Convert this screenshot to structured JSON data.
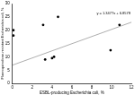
{
  "chart_data": {
    "type": "scatter",
    "x_label": "ESBL-producing Escherichia coli, %",
    "y_label": "Fluoroquinolone-resistant Escherichia coli, %",
    "series": [
      {
        "type": "scatter",
        "color": "#000000",
        "marker": "circle",
        "x": [
          0.1,
          0.1,
          3.1,
          3.3,
          4.0,
          4.2,
          4.6,
          9.9,
          10.8
        ],
        "values": [
          20,
          18,
          22,
          9,
          9.5,
          10,
          25,
          12.5,
          22
        ]
      },
      {
        "type": "line",
        "color": "#999999",
        "line_style": "solid",
        "x": [
          0,
          12
        ],
        "values": [
          6.9,
          23.0
        ]
      }
    ],
    "xlim": [
      0,
      12
    ],
    "xticks": [
      0,
      2,
      4,
      6,
      8,
      10,
      12
    ],
    "ylim": [
      0,
      30
    ],
    "yticks": [
      0,
      5,
      10,
      15,
      20,
      25,
      30
    ],
    "grid": false,
    "annotations": [
      {
        "text": "y = 1.3477x + 6.8578"
      }
    ]
  }
}
